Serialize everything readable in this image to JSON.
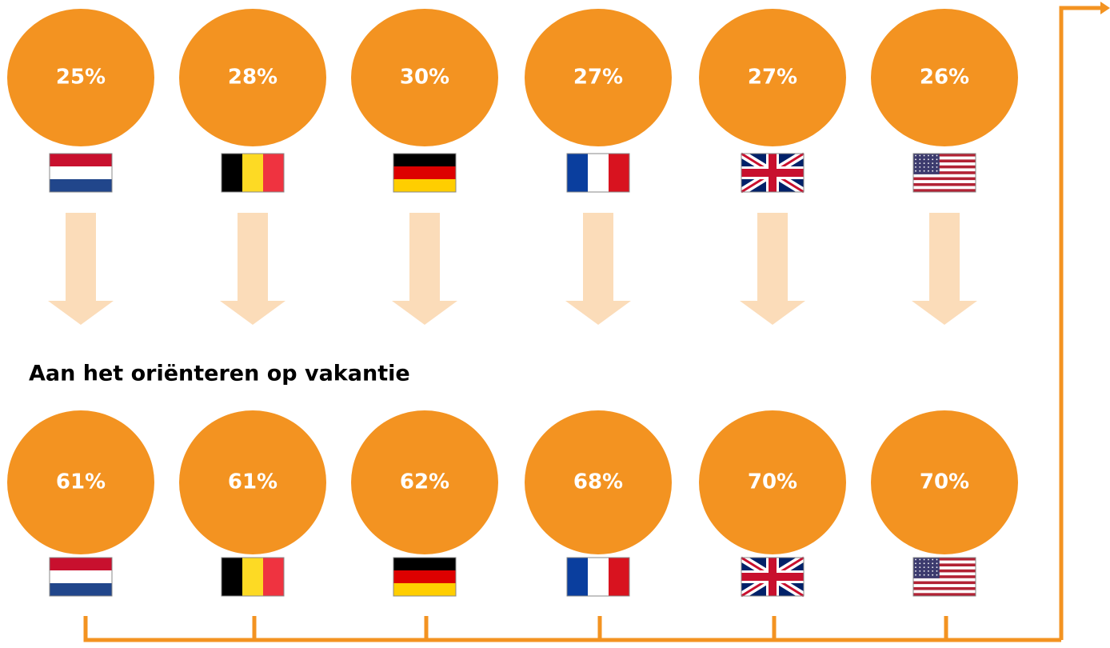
{
  "rows": [
    {
      "circles": [
        "25%",
        "28%",
        "30%",
        "27%",
        "27%",
        "26%"
      ]
    },
    {
      "title": "Aan het oriënteren op vakantie",
      "circles": [
        "61%",
        "61%",
        "62%",
        "68%",
        "70%",
        "70%"
      ]
    }
  ]
}
